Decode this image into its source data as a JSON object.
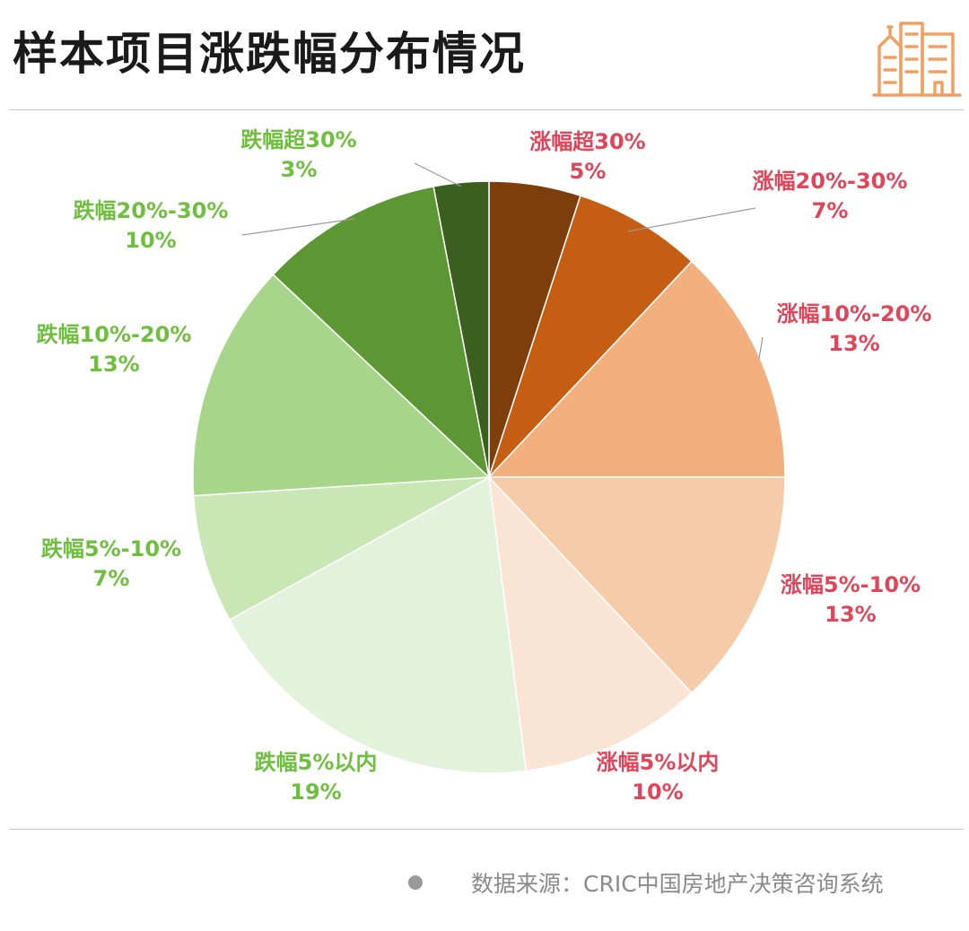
{
  "title": "样本项目涨跌幅分布情况",
  "source_text": "数据来源：CRIC中国房地产决策咨询系统",
  "icons": {
    "header": "building-icon",
    "source_marker": "bullet-dot-icon"
  },
  "colors": {
    "rise_label": "#e0455a",
    "fall_label": "#6fbf3f",
    "icon": "#f0a062"
  },
  "chart_data": {
    "type": "pie",
    "start": "12 o'clock",
    "direction": "clockwise",
    "slices": [
      {
        "label": "涨幅超30%",
        "value": 5,
        "display": "5%",
        "color": "#7d3e0c",
        "group": "rise"
      },
      {
        "label": "涨幅20%-30%",
        "value": 7,
        "display": "7%",
        "color": "#c55d12",
        "group": "rise"
      },
      {
        "label": "涨幅10%-20%",
        "value": 13,
        "display": "13%",
        "color": "#f2b07e",
        "group": "rise"
      },
      {
        "label": "涨幅5%-10%",
        "value": 13,
        "display": "13%",
        "color": "#f6cba8",
        "group": "rise"
      },
      {
        "label": "涨幅5%以内",
        "value": 10,
        "display": "10%",
        "color": "#fae4d3",
        "group": "rise"
      },
      {
        "label": "跌幅5%以内",
        "value": 19,
        "display": "19%",
        "color": "#e3f2da",
        "group": "fall"
      },
      {
        "label": "跌幅5%-10%",
        "value": 7,
        "display": "7%",
        "color": "#c8e7b4",
        "group": "fall"
      },
      {
        "label": "跌幅10%-20%",
        "value": 13,
        "display": "13%",
        "color": "#a7d68b",
        "group": "fall"
      },
      {
        "label": "跌幅20%-30%",
        "value": 10,
        "display": "10%",
        "color": "#5c9733",
        "group": "fall"
      },
      {
        "label": "跌幅超30%",
        "value": 3,
        "display": "3%",
        "color": "#3a5f1f",
        "group": "fall"
      }
    ]
  }
}
